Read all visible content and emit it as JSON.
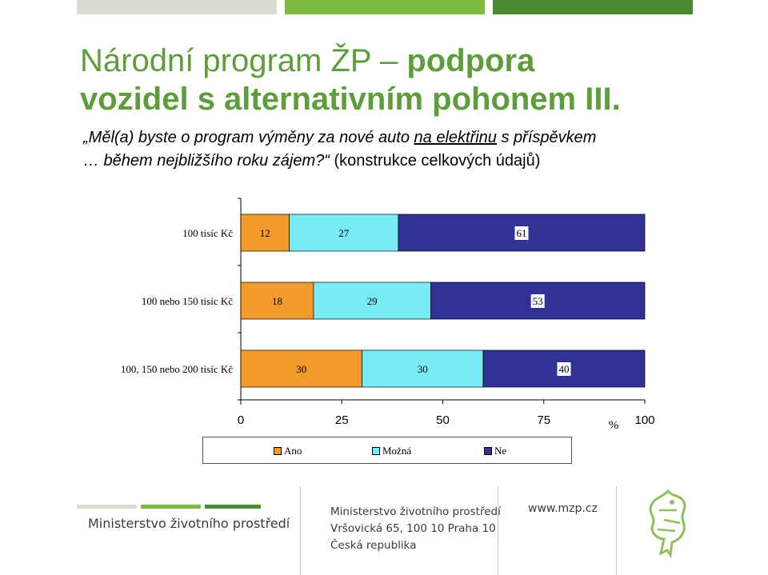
{
  "title": {
    "line1_normal": "Národní program ŽP – ",
    "line1_bold": "podpora",
    "line2": "vozidel s alternativním pohonem III."
  },
  "question": {
    "part1": "„Měl(a) byste o program výměny za nové auto ",
    "part_underlined": "na elektřinu",
    "part2": " s příspěvkem",
    "part3": "… během nejbližšího roku zájem?“",
    "part4": " (konstrukce celkových údajů)"
  },
  "colors": {
    "title_green": "#5e9e3a",
    "ano": "#f39a2c",
    "mozna": "#77ecf4",
    "ne": "#303294"
  },
  "chart_data": {
    "type": "bar",
    "orientation": "horizontal",
    "stacked": true,
    "categories": [
      "100 tisíc Kč",
      "100 nebo 150 tisíc Kč",
      "100, 150 nebo 200 tisíc Kč"
    ],
    "series": [
      {
        "name": "Ano",
        "values": [
          12,
          18,
          30
        ]
      },
      {
        "name": "Možná",
        "values": [
          27,
          29,
          30
        ]
      },
      {
        "name": "Ne",
        "values": [
          61,
          53,
          40
        ]
      }
    ],
    "xlim": [
      0,
      100
    ],
    "xticks": [
      "0",
      "25",
      "50",
      "75",
      "100"
    ],
    "xlabel": "%",
    "legend": [
      "Ano",
      "Možná",
      "Ne"
    ],
    "legend_position": "bottom"
  },
  "footer": {
    "ministry": "Ministerstvo životního prostředí",
    "address_line1": "Ministerstvo životního prostředí",
    "address_line2": "Vršovická 65, 100 10  Praha 10",
    "address_line3": "Česká republika",
    "website": "www.mzp.cz",
    "crest_icon": "ministry-crest-icon"
  }
}
